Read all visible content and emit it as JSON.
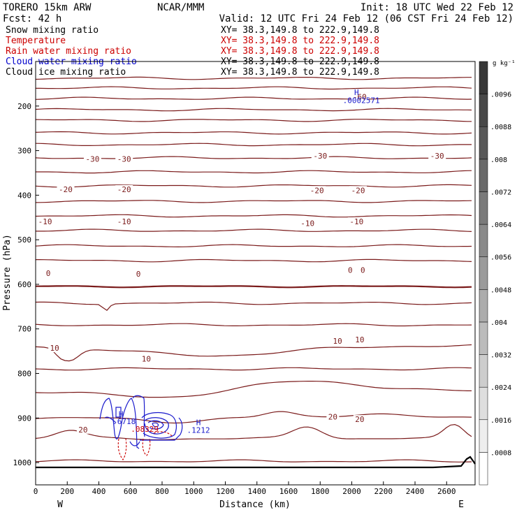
{
  "header": {
    "model": "TORERO  15km ARW",
    "org": "NCAR/MMM",
    "init": "Init: 18 UTC Wed 22 Feb 12",
    "fcst": "Fcst:   42 h",
    "valid": "Valid: 12 UTC Fri 24 Feb 12 (06 CST Fri 24 Feb 12)"
  },
  "legend": [
    {
      "label": "Snow mixing ratio",
      "range": "XY=  38.3,149.8 to 222.9,149.8",
      "color": "#000000"
    },
    {
      "label": "Temperature",
      "range": "XY=  38.3,149.8 to 222.9,149.8",
      "color": "#cc0000"
    },
    {
      "label": "Rain water mixing ratio",
      "range": "XY=  38.3,149.8 to 222.9,149.8",
      "color": "#cc0000"
    },
    {
      "label": "Cloud water mixing ratio",
      "range": "XY=  38.3,149.8 to 222.9,149.8",
      "color": "#0000cc"
    },
    {
      "label": "Cloud ice mixing ratio",
      "range": "XY=  38.3,149.8 to 222.9,149.8",
      "color": "#000000"
    }
  ],
  "colors": {
    "temperature": "#7a1a1a",
    "cloud_water": "#1a1acc",
    "rain": "#cc0000",
    "terrain": "#000000"
  },
  "chart_data": {
    "type": "contour",
    "xlabel": "Distance (km)",
    "ylabel": "Pressure (hPa)",
    "xlim": [
      0,
      2780
    ],
    "ylim": [
      1050,
      100
    ],
    "x_ticks": [
      0,
      200,
      400,
      600,
      800,
      1000,
      1200,
      1400,
      1600,
      1800,
      2000,
      2200,
      2400,
      2600
    ],
    "y_ticks": [
      200,
      300,
      400,
      500,
      600,
      700,
      800,
      900,
      1000
    ],
    "x_end_labels": {
      "left": "W",
      "right": "E"
    },
    "colorbar": {
      "unit": "g kg⁻¹",
      "levels": [
        ".0008",
        ".0016",
        ".0024",
        ".0032",
        ".004",
        ".0048",
        ".0056",
        ".0064",
        ".0072",
        ".008",
        ".0088",
        ".0096"
      ]
    },
    "temperature_contours": [
      {
        "label": "-60",
        "x": 2050,
        "p": 182
      },
      {
        "label": "-30",
        "x": 360,
        "p": 322
      },
      {
        "label": "-30",
        "x": 560,
        "p": 322
      },
      {
        "label": "-30",
        "x": 1800,
        "p": 315
      },
      {
        "label": "-30",
        "x": 2540,
        "p": 315
      },
      {
        "label": "-20",
        "x": 190,
        "p": 390
      },
      {
        "label": "-20",
        "x": 560,
        "p": 390
      },
      {
        "label": "-20",
        "x": 1780,
        "p": 392
      },
      {
        "label": "-20",
        "x": 2040,
        "p": 392
      },
      {
        "label": "-10",
        "x": 60,
        "p": 462
      },
      {
        "label": "-10",
        "x": 560,
        "p": 462
      },
      {
        "label": "-10",
        "x": 1720,
        "p": 466
      },
      {
        "label": "-10",
        "x": 2030,
        "p": 462
      },
      {
        "label": "0",
        "x": 80,
        "p": 578
      },
      {
        "label": "0",
        "x": 650,
        "p": 580
      },
      {
        "label": "0",
        "x": 1990,
        "p": 571
      },
      {
        "label": "0",
        "x": 2070,
        "p": 571
      },
      {
        "label": "10",
        "x": 120,
        "p": 746
      },
      {
        "label": "10",
        "x": 700,
        "p": 770
      },
      {
        "label": "10",
        "x": 1910,
        "p": 730
      },
      {
        "label": "10",
        "x": 2050,
        "p": 727
      },
      {
        "label": "20",
        "x": 300,
        "p": 929
      },
      {
        "label": "20",
        "x": 1880,
        "p": 900
      },
      {
        "label": "20",
        "x": 2050,
        "p": 906
      }
    ],
    "extrema": [
      {
        "label": "H",
        "x": 2030,
        "p": 175
      },
      {
        "label": ".0002571",
        "x": 2060,
        "p": 193
      },
      {
        "label": "H",
        "x": 540,
        "p": 897
      },
      {
        "label": ".6718",
        "x": 560,
        "p": 914
      },
      {
        "label": "H",
        "x": 1030,
        "p": 916
      },
      {
        "label": ".1212",
        "x": 1030,
        "p": 933
      },
      {
        "label": ".08329",
        "x": 690,
        "p": 931
      }
    ]
  }
}
